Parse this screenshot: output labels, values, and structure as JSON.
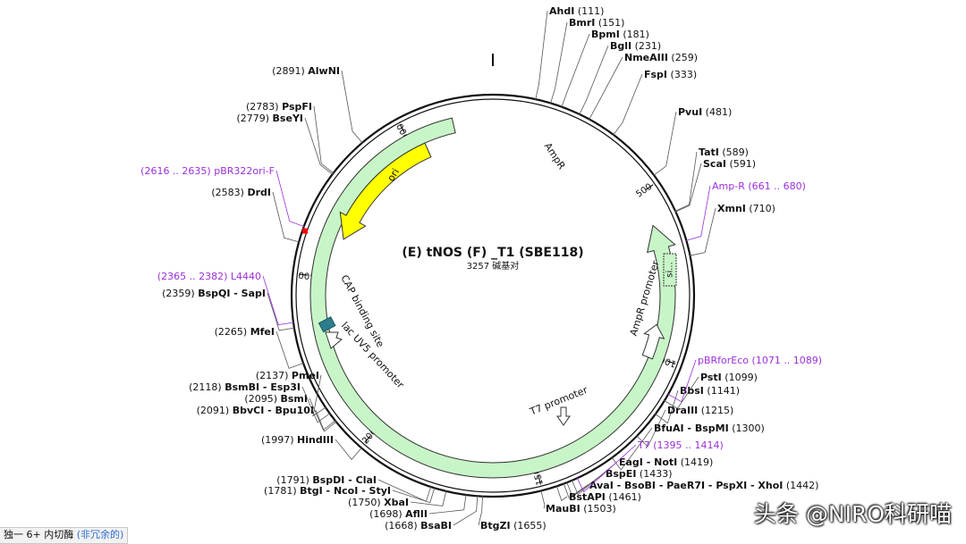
{
  "plasmid": {
    "name": "(E) tNOS (F) _T1 (SBE118)",
    "size_text": "3257 碱基对",
    "total_bp": 3257
  },
  "ticks": [
    {
      "pos": 500,
      "label": "500"
    },
    {
      "pos": 1000,
      "label": "1000"
    },
    {
      "pos": 1500,
      "label": "1500"
    },
    {
      "pos": 2000,
      "label": "2000"
    },
    {
      "pos": 2500,
      "label": "2500"
    },
    {
      "pos": 3000,
      "label": "3000"
    }
  ],
  "features": [
    {
      "name": "AmpR",
      "start": 3140,
      "end": 600,
      "direction": "reverse",
      "color": "#c8f5c8",
      "kind": "arrow"
    },
    {
      "name": "ori",
      "start": 3040,
      "end": 2630,
      "direction": "reverse",
      "color": "#ffff00",
      "kind": "arrow"
    },
    {
      "name": "AmpR promoter",
      "start": 1010,
      "end": 905,
      "direction": "reverse",
      "color": "#ffffff",
      "kind": "arrow"
    },
    {
      "name": "si...",
      "start": 680,
      "end": 600,
      "direction": "none",
      "color": "#c8f5c8",
      "kind": "box"
    },
    {
      "name": "T7 promoter",
      "start": 1395,
      "end": 1414,
      "direction": "forward",
      "color": "#ffffff",
      "kind": "small"
    },
    {
      "name": "CAP binding site",
      "start": 2265,
      "end": 2244,
      "direction": "none",
      "color": "#2c7d8c",
      "kind": "box"
    },
    {
      "name": "lac UV5 promoter",
      "start": 2243,
      "end": 2212,
      "direction": "reverse",
      "color": "#ffffff",
      "kind": "small"
    }
  ],
  "enzymes": [
    {
      "name": "AhdI",
      "pos_text": "(111)",
      "pos": 111,
      "side": "right",
      "name_first": true
    },
    {
      "name": "BmrI",
      "pos_text": "(151)",
      "pos": 151,
      "side": "right",
      "name_first": true
    },
    {
      "name": "BpmI",
      "pos_text": "(181)",
      "pos": 181,
      "side": "right",
      "name_first": true
    },
    {
      "name": "BglI",
      "pos_text": "(231)",
      "pos": 231,
      "side": "right",
      "name_first": true
    },
    {
      "name": "NmeAIII",
      "pos_text": "(259)",
      "pos": 259,
      "side": "right",
      "name_first": true
    },
    {
      "name": "FspI",
      "pos_text": "(333)",
      "pos": 333,
      "side": "right",
      "name_first": true
    },
    {
      "name": "PvuI",
      "pos_text": "(481)",
      "pos": 481,
      "side": "right",
      "name_first": true
    },
    {
      "name": "TatI",
      "pos_text": "(589)",
      "pos": 589,
      "side": "right",
      "name_first": true
    },
    {
      "name": "ScaI",
      "pos_text": "(591)",
      "pos": 591,
      "side": "right",
      "name_first": true
    },
    {
      "name": "XmnI",
      "pos_text": "(710)",
      "pos": 710,
      "side": "right",
      "name_first": true
    },
    {
      "name": "PstI",
      "pos_text": "(1099)",
      "pos": 1099,
      "side": "right",
      "name_first": true
    },
    {
      "name": "BbsI",
      "pos_text": "(1141)",
      "pos": 1141,
      "side": "right",
      "name_first": true
    },
    {
      "name": "DraIII",
      "pos_text": "(1215)",
      "pos": 1215,
      "side": "right",
      "name_first": true
    },
    {
      "name": "BfuAI - BspMI",
      "pos_text": "(1300)",
      "pos": 1300,
      "side": "right",
      "name_first": true
    },
    {
      "name": "EagI - NotI",
      "pos_text": "(1419)",
      "pos": 1419,
      "side": "right",
      "name_first": true
    },
    {
      "name": "BspEI",
      "pos_text": "(1433)",
      "pos": 1433,
      "side": "right",
      "name_first": true
    },
    {
      "name": "AvaI - BsoBI - PaeR7I - PspXI - XhoI",
      "pos_text": "(1442)",
      "pos": 1442,
      "side": "right",
      "name_first": true
    },
    {
      "name": "BstAPI",
      "pos_text": "(1461)",
      "pos": 1461,
      "side": "right",
      "name_first": true
    },
    {
      "name": "MauBI",
      "pos_text": "(1503)",
      "pos": 1503,
      "side": "right",
      "name_first": true
    },
    {
      "name": "BtgZI",
      "pos_text": "(1655)",
      "pos": 1655,
      "side": "right",
      "name_first": true
    },
    {
      "name": "BsaBI",
      "pos_text": "(1668)",
      "pos": 1668,
      "side": "left",
      "name_first": false
    },
    {
      "name": "AflII",
      "pos_text": "(1698)",
      "pos": 1698,
      "side": "left",
      "name_first": false
    },
    {
      "name": "XbaI",
      "pos_text": "(1750)",
      "pos": 1750,
      "side": "left",
      "name_first": false
    },
    {
      "name": "BtgI - NcoI - StyI",
      "pos_text": "(1781)",
      "pos": 1781,
      "side": "left",
      "name_first": false
    },
    {
      "name": "BspDI - ClaI",
      "pos_text": "(1791)",
      "pos": 1791,
      "side": "left",
      "name_first": false
    },
    {
      "name": "HindIII",
      "pos_text": "(1997)",
      "pos": 1997,
      "side": "left",
      "name_first": false
    },
    {
      "name": "BbvCI - Bpu10I",
      "pos_text": "(2091)",
      "pos": 2091,
      "side": "left",
      "name_first": false
    },
    {
      "name": "BsmI",
      "pos_text": "(2095)",
      "pos": 2095,
      "side": "left",
      "name_first": false
    },
    {
      "name": "BsmBI - Esp3I",
      "pos_text": "(2118)",
      "pos": 2118,
      "side": "left",
      "name_first": false
    },
    {
      "name": "PmeI",
      "pos_text": "(2137)",
      "pos": 2137,
      "side": "left",
      "name_first": false
    },
    {
      "name": "MfeI",
      "pos_text": "(2265)",
      "pos": 2265,
      "side": "left",
      "name_first": false
    },
    {
      "name": "BspQI - SapI",
      "pos_text": "(2359)",
      "pos": 2359,
      "side": "left",
      "name_first": false
    },
    {
      "name": "DrdI",
      "pos_text": "(2583)",
      "pos": 2583,
      "side": "left",
      "name_first": false
    },
    {
      "name": "BseYI",
      "pos_text": "(2779)",
      "pos": 2779,
      "side": "left",
      "name_first": false
    },
    {
      "name": "PspFI",
      "pos_text": "(2783)",
      "pos": 2783,
      "side": "left",
      "name_first": false
    },
    {
      "name": "AlwNI",
      "pos_text": "(2891)",
      "pos": 2891,
      "side": "left",
      "name_first": false
    }
  ],
  "primers": [
    {
      "name": "Amp-R",
      "range_text": "(661 .. 680)",
      "pos": 670,
      "side": "right",
      "name_first": true
    },
    {
      "name": "pBRforEco",
      "range_text": "(1071 .. 1089)",
      "pos": 1080,
      "side": "right",
      "name_first": true
    },
    {
      "name": "T7",
      "range_text": "(1395 .. 1414)",
      "pos": 1404,
      "side": "right",
      "name_first": true
    },
    {
      "name": "L4440",
      "range_text": "(2365 .. 2382)",
      "pos": 2373,
      "side": "left",
      "name_first": false
    },
    {
      "name": "pBR322ori-F",
      "range_text": "(2616 .. 2635)",
      "pos": 2625,
      "side": "left",
      "name_first": false
    }
  ],
  "colors": {
    "primer": "#9b30d9",
    "backbone": "#111111",
    "ori": "#ffff00",
    "ampr": "#c8f5c8",
    "cap": "#2c7d8c",
    "marker": "#ff0000"
  },
  "status_bar": {
    "prefix": "独一 6+ 内切酶",
    "link": "(非冗余的)"
  },
  "watermark": "头条 @NIRO科研喵"
}
